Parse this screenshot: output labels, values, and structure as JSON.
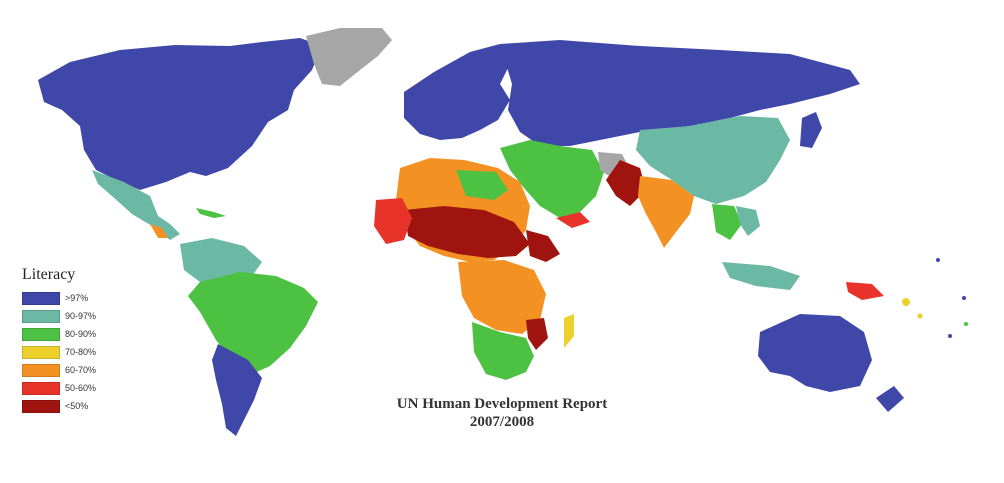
{
  "map": {
    "colors": {
      "gt97": "#3f47a8",
      "r90_97": "#6bb8a4",
      "r80_90": "#4cc142",
      "r70_80": "#ecd12d",
      "r60_70": "#f39222",
      "r50_60": "#e8332b",
      "lt50": "#a0140f",
      "nodata": "#a6a6a6",
      "ocean": "#ffffff"
    }
  },
  "legend": {
    "title": "Literacy",
    "items": [
      {
        "label": ">97%",
        "color": "#3f47a8"
      },
      {
        "label": "90-97%",
        "color": "#6bb8a4"
      },
      {
        "label": "80-90%",
        "color": "#4cc142"
      },
      {
        "label": "70-80%",
        "color": "#ecd12d"
      },
      {
        "label": "60-70%",
        "color": "#f39222"
      },
      {
        "label": "50-60%",
        "color": "#e8332b"
      },
      {
        "label": "<50%",
        "color": "#a0140f"
      }
    ]
  },
  "source": {
    "line1": "UN Human Development Report",
    "line2": "2007/2008"
  }
}
